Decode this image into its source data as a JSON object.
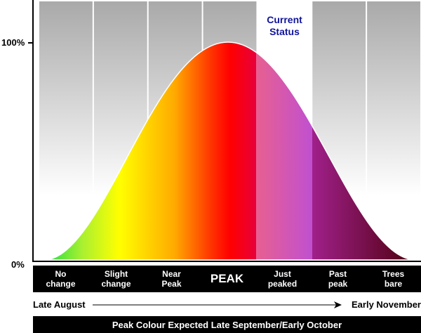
{
  "axis": {
    "top_label": "100%",
    "bottom_label": "0%"
  },
  "current_status": {
    "label": "Current\nStatus",
    "stage_index": 4,
    "color": "#10149a"
  },
  "stages": [
    {
      "label": "No\nchange"
    },
    {
      "label": "Slight\nchange"
    },
    {
      "label": "Near\nPeak"
    },
    {
      "label": "PEAK"
    },
    {
      "label": "Just\npeaked"
    },
    {
      "label": "Past\npeak"
    },
    {
      "label": "Trees\nbare"
    }
  ],
  "timeline": {
    "start": "Late August",
    "end": "Early November"
  },
  "footer": {
    "text": "Peak Colour Expected Late September/Early October"
  },
  "colors": {
    "green": "#22dd44",
    "yellow": "#ffff00",
    "orange": "#ffaa00",
    "red": "#ff0000",
    "pink": "#e86090",
    "purple": "#a0208a",
    "brown": "#500010"
  }
}
